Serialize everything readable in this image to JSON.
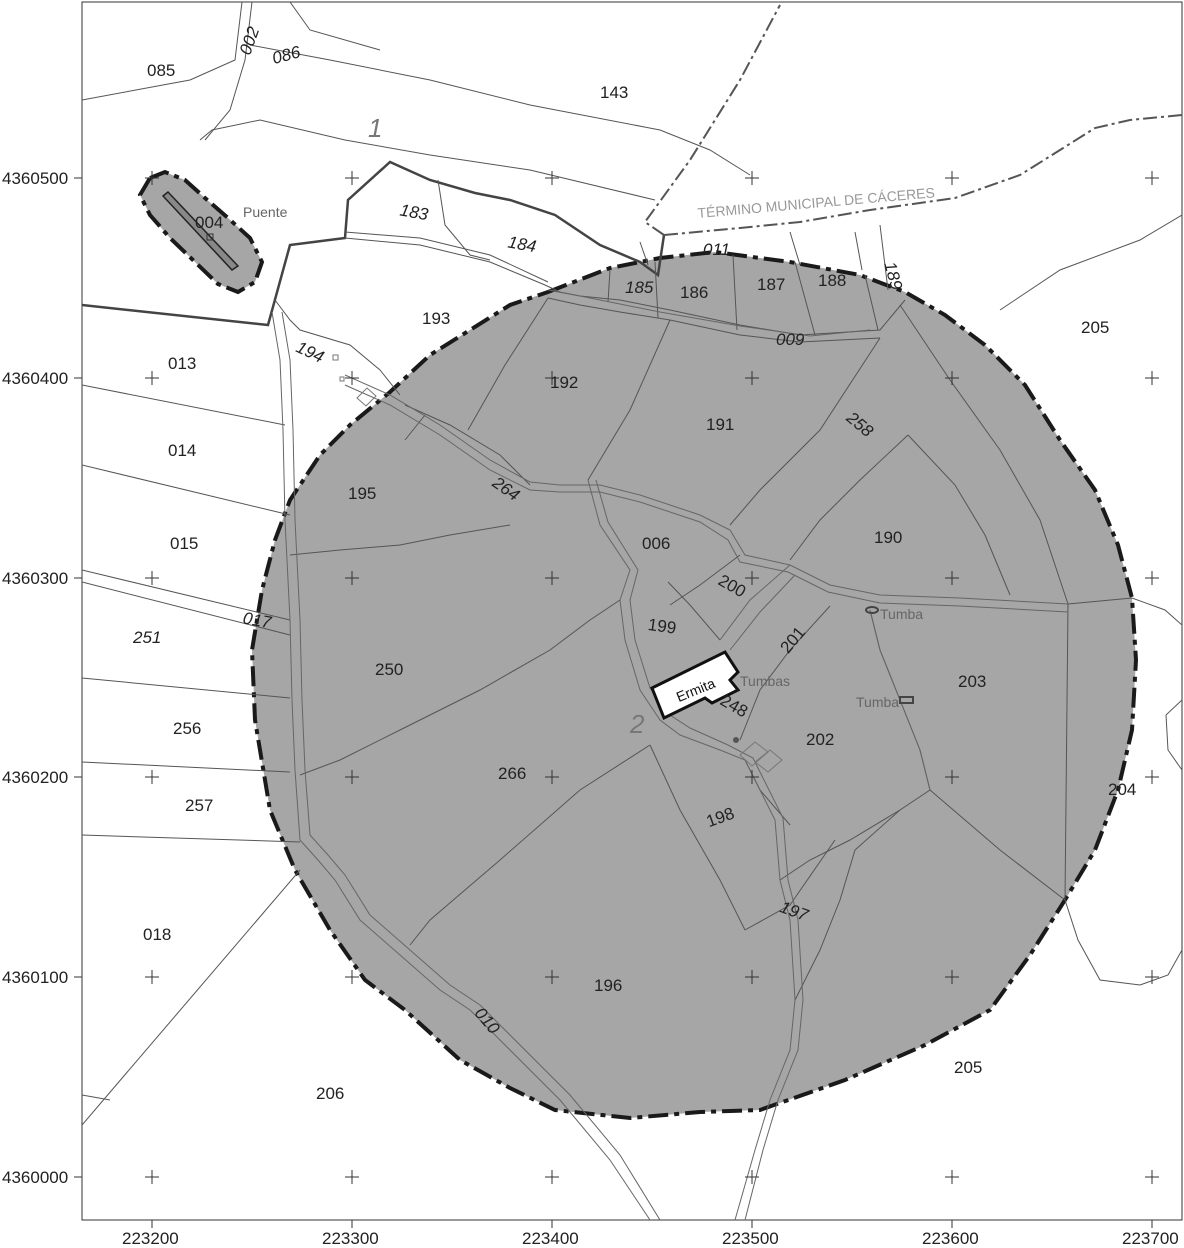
{
  "map": {
    "x_axis_ticks": [
      "223200",
      "223300",
      "223400",
      "223500",
      "223600",
      "223700"
    ],
    "y_axis_ticks": [
      "4360500",
      "4360400",
      "4360300",
      "4360200",
      "4360100",
      "4360000"
    ],
    "municipal_boundary_label": "TÉRMINO MUNICIPAL DE CÁCERES",
    "zone_numbers": [
      "1",
      "2"
    ],
    "features": {
      "puente": "Puente",
      "ermita": "Ermita",
      "tumbas": "Tumbas",
      "tumba_1": "Tumba",
      "tumba_2": "Tumba"
    },
    "parcels": [
      "085",
      "086",
      "002",
      "143",
      "183",
      "184",
      "011",
      "185",
      "186",
      "187",
      "188",
      "189",
      "193",
      "205",
      "013",
      "194",
      "192",
      "009",
      "191",
      "258",
      "014",
      "195",
      "264",
      "006",
      "190",
      "015",
      "200",
      "199",
      "201",
      "251",
      "017",
      "250",
      "203",
      "256",
      "248",
      "202",
      "266",
      "204",
      "257",
      "198",
      "018",
      "197",
      "196",
      "010",
      "206",
      "205",
      "004"
    ],
    "colors": {
      "protection_zone": "#a6a6a6",
      "zone_outline": "#1a1a1a",
      "background": "#ffffff"
    }
  }
}
